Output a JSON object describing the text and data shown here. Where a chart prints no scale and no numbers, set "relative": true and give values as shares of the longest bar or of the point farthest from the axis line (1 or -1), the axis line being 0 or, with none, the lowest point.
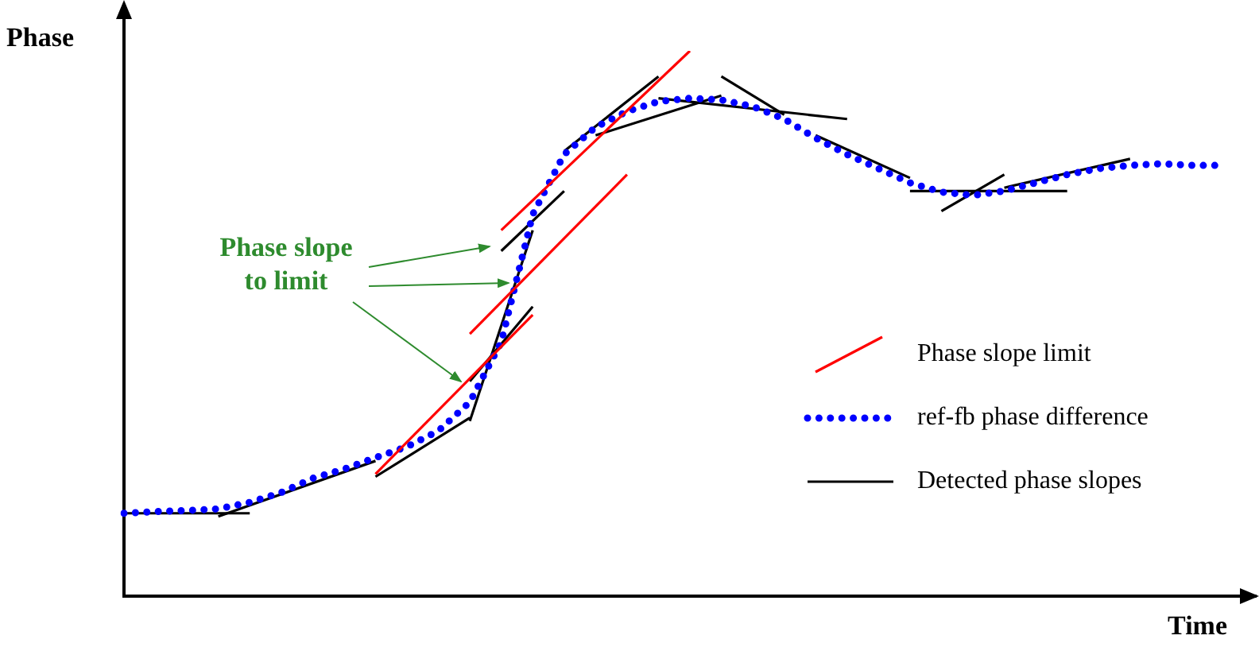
{
  "chart_data": {
    "type": "line",
    "relative": true,
    "xlabel": "Time",
    "ylabel": "Phase",
    "legend": "bottom right",
    "annotations": [
      "Phase slope\nto limit"
    ],
    "categories": [
      null,
      null,
      null,
      null,
      null,
      null,
      null,
      null,
      null,
      null,
      null,
      null,
      null,
      null,
      null,
      null,
      null,
      null,
      null,
      null,
      null,
      null,
      null,
      null,
      null,
      null,
      null,
      null,
      null,
      null,
      null,
      null,
      null,
      null,
      null,
      null,
      null
    ],
    "series": [
      {
        "name": "Phase slope limit",
        "color": "#ff0000",
        "line_style": "solid",
        "values": [
          null,
          null,
          null,
          null,
          null,
          null,
          null,
          null,
          0.224,
          null,
          null,
          null,
          null,
          0.516,
          null,
          null,
          null,
          null,
          null,
          null,
          null,
          null,
          null,
          null,
          null,
          null,
          null,
          null,
          null,
          null,
          null,
          null,
          null,
          null,
          null,
          null,
          null
        ]
      },
      {
        "color": "#ff0000",
        "line_style": "solid",
        "values": [
          null,
          null,
          null,
          null,
          null,
          null,
          null,
          null,
          null,
          null,
          null,
          0.481,
          null,
          null,
          null,
          null,
          0.773,
          null,
          null,
          null,
          null,
          null,
          null,
          null,
          null,
          null,
          null,
          null,
          null,
          null,
          null,
          null,
          null,
          null,
          null,
          null,
          null
        ]
      },
      {
        "color": "#ff0000",
        "line_style": "solid",
        "values": [
          null,
          null,
          null,
          null,
          null,
          null,
          null,
          null,
          null,
          null,
          null,
          null,
          0.671,
          null,
          null,
          null,
          null,
          null,
          1.0,
          null,
          null,
          null,
          null,
          null,
          null,
          null,
          null,
          null,
          null,
          null,
          null,
          null,
          null,
          null,
          null,
          null,
          null
        ]
      },
      {
        "name": "ref-fb phase difference",
        "color": "#0000ff",
        "line_style": "dotted",
        "values": [
          0.152,
          0.155,
          0.157,
          0.16,
          0.172,
          0.19,
          0.216,
          0.233,
          0.254,
          0.274,
          0.303,
          0.356,
          0.466,
          0.7,
          0.81,
          0.86,
          0.889,
          0.907,
          0.913,
          0.91,
          0.898,
          0.875,
          0.84,
          0.81,
          0.784,
          0.758,
          0.741,
          0.735,
          0.743,
          0.758,
          0.773,
          0.784,
          0.79,
          0.793,
          0.79,
          0.79,
          null
        ]
      },
      {
        "name": "Detected phase slopes",
        "color": "#000000",
        "line_style": "solid",
        "values": [
          0.152,
          null,
          null,
          null,
          0.152,
          null,
          null,
          null,
          null,
          null,
          null,
          null,
          null,
          null,
          null,
          null,
          null,
          null,
          null,
          null,
          null,
          null,
          null,
          null,
          null,
          null,
          null,
          null,
          null,
          null,
          null,
          null,
          null,
          null,
          null,
          null,
          null
        ]
      },
      {
        "color": "#000000",
        "line_style": "solid",
        "values": [
          null,
          null,
          null,
          0.146,
          null,
          null,
          null,
          null,
          0.248,
          null,
          null,
          null,
          null,
          null,
          null,
          null,
          null,
          null,
          null,
          null,
          null,
          null,
          null,
          null,
          null,
          null,
          null,
          null,
          null,
          null,
          null,
          null,
          null,
          null,
          null,
          null,
          null
        ]
      },
      {
        "color": "#000000",
        "line_style": "solid",
        "values": [
          null,
          null,
          null,
          null,
          null,
          null,
          null,
          null,
          0.219,
          null,
          null,
          0.327,
          null,
          null,
          null,
          null,
          null,
          null,
          null,
          null,
          null,
          null,
          null,
          null,
          null,
          null,
          null,
          null,
          null,
          null,
          null,
          null,
          null,
          null,
          null,
          null,
          null
        ]
      },
      {
        "color": "#000000",
        "line_style": "solid",
        "values": [
          null,
          null,
          null,
          null,
          null,
          null,
          null,
          null,
          null,
          null,
          null,
          0.394,
          null,
          0.531,
          null,
          null,
          null,
          null,
          null,
          null,
          null,
          null,
          null,
          null,
          null,
          null,
          null,
          null,
          null,
          null,
          null,
          null,
          null,
          null,
          null,
          null,
          null
        ]
      },
      {
        "color": "#000000",
        "line_style": "solid",
        "values": [
          null,
          null,
          null,
          null,
          null,
          null,
          null,
          null,
          null,
          null,
          null,
          0.321,
          null,
          0.671,
          null,
          null,
          null,
          null,
          null,
          null,
          null,
          null,
          null,
          null,
          null,
          null,
          null,
          null,
          null,
          null,
          null,
          null,
          null,
          null,
          null,
          null,
          null
        ]
      },
      {
        "color": "#000000",
        "line_style": "solid",
        "values": [
          null,
          null,
          null,
          null,
          null,
          null,
          null,
          null,
          null,
          null,
          null,
          null,
          0.633,
          null,
          0.743,
          null,
          null,
          null,
          null,
          null,
          null,
          null,
          null,
          null,
          null,
          null,
          null,
          null,
          null,
          null,
          null,
          null,
          null,
          null,
          null,
          null,
          null
        ]
      },
      {
        "color": "#000000",
        "line_style": "solid",
        "values": [
          null,
          null,
          null,
          null,
          null,
          null,
          null,
          null,
          null,
          null,
          null,
          null,
          null,
          null,
          0.816,
          null,
          null,
          0.953,
          null,
          null,
          null,
          null,
          null,
          null,
          null,
          null,
          null,
          null,
          null,
          null,
          null,
          null,
          null,
          null,
          null,
          null,
          null
        ]
      },
      {
        "color": "#000000",
        "line_style": "solid",
        "values": [
          null,
          null,
          null,
          null,
          null,
          null,
          null,
          null,
          null,
          null,
          null,
          null,
          null,
          null,
          null,
          0.845,
          null,
          null,
          null,
          0.918,
          null,
          null,
          null,
          null,
          null,
          null,
          null,
          null,
          null,
          null,
          null,
          null,
          null,
          null,
          null,
          null,
          null
        ]
      },
      {
        "color": "#000000",
        "line_style": "solid",
        "values": [
          null,
          null,
          null,
          null,
          null,
          null,
          null,
          null,
          null,
          null,
          null,
          null,
          null,
          null,
          null,
          null,
          null,
          0.913,
          null,
          null,
          null,
          null,
          null,
          0.875,
          null,
          null,
          null,
          null,
          null,
          null,
          null,
          null,
          null,
          null,
          null,
          null,
          null
        ]
      },
      {
        "color": "#000000",
        "line_style": "solid",
        "values": [
          null,
          null,
          null,
          null,
          null,
          null,
          null,
          null,
          null,
          null,
          null,
          null,
          null,
          null,
          null,
          null,
          null,
          null,
          null,
          0.953,
          null,
          0.883,
          null,
          null,
          null,
          null,
          null,
          null,
          null,
          null,
          null,
          null,
          null,
          null,
          null,
          null,
          null
        ]
      },
      {
        "color": "#000000",
        "line_style": "solid",
        "values": [
          null,
          null,
          null,
          null,
          null,
          null,
          null,
          null,
          null,
          null,
          null,
          null,
          null,
          null,
          null,
          null,
          null,
          null,
          null,
          null,
          null,
          null,
          0.845,
          null,
          null,
          0.767,
          null,
          null,
          null,
          null,
          null,
          null,
          null,
          null,
          null,
          null,
          null
        ]
      },
      {
        "color": "#000000",
        "line_style": "solid",
        "values": [
          null,
          null,
          null,
          null,
          null,
          null,
          null,
          null,
          null,
          null,
          null,
          null,
          null,
          null,
          null,
          null,
          null,
          null,
          null,
          null,
          null,
          null,
          null,
          null,
          null,
          0.743,
          null,
          null,
          null,
          null,
          0.743,
          null,
          null,
          null,
          null,
          null,
          null
        ]
      },
      {
        "color": "#000000",
        "line_style": "solid",
        "values": [
          null,
          null,
          null,
          null,
          null,
          null,
          null,
          null,
          null,
          null,
          null,
          null,
          null,
          null,
          null,
          null,
          null,
          null,
          null,
          null,
          null,
          null,
          null,
          null,
          null,
          null,
          0.706,
          null,
          0.773,
          null,
          null,
          null,
          null,
          null,
          null,
          null,
          null
        ]
      },
      {
        "color": "#000000",
        "line_style": "solid",
        "values": [
          null,
          null,
          null,
          null,
          null,
          null,
          null,
          null,
          null,
          null,
          null,
          null,
          null,
          null,
          null,
          null,
          null,
          null,
          null,
          null,
          null,
          null,
          null,
          null,
          null,
          null,
          null,
          null,
          0.749,
          null,
          null,
          null,
          0.802,
          null,
          null,
          null,
          null
        ]
      }
    ]
  }
}
